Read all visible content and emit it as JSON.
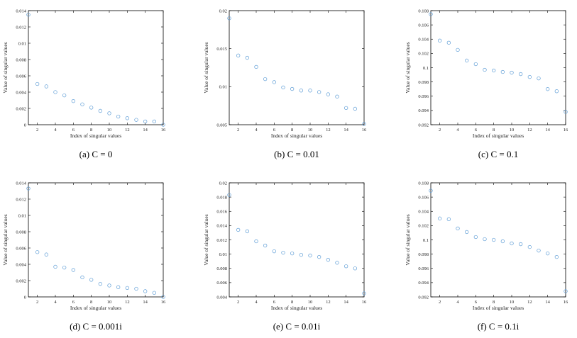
{
  "chart_data": [
    {
      "type": "scatter",
      "caption": "(a) C = 0",
      "xlabel": "Index of singular values",
      "ylabel": "Value of singular values",
      "xlim": [
        1,
        16
      ],
      "ylim": [
        0,
        0.014
      ],
      "xticks": [
        "2",
        "4",
        "6",
        "8",
        "10",
        "12",
        "14",
        "16"
      ],
      "yticks": [
        "0",
        "0.002",
        "0.004",
        "0.006",
        "0.008",
        "0.01",
        "0.012",
        "0.014"
      ],
      "x": [
        1,
        2,
        3,
        4,
        5,
        6,
        7,
        8,
        9,
        10,
        11,
        12,
        13,
        14,
        15,
        16
      ],
      "y": [
        0.0135,
        0.005,
        0.0047,
        0.004,
        0.0036,
        0.0029,
        0.0025,
        0.0021,
        0.0017,
        0.0014,
        0.001,
        0.0008,
        0.0006,
        0.0004,
        0.0004,
        0.0
      ]
    },
    {
      "type": "scatter",
      "caption": "(b) C = 0.01",
      "xlabel": "Index of singular values",
      "ylabel": "Value of singular values",
      "xlim": [
        1,
        16
      ],
      "ylim": [
        0.005,
        0.02
      ],
      "xticks": [
        "2",
        "4",
        "6",
        "8",
        "10",
        "12",
        "14",
        "16"
      ],
      "yticks": [
        "0.005",
        "0.01",
        "0.015",
        "0.02"
      ],
      "x": [
        1,
        2,
        3,
        4,
        5,
        6,
        7,
        8,
        9,
        10,
        11,
        12,
        13,
        14,
        15,
        16
      ],
      "y": [
        0.019,
        0.0141,
        0.0138,
        0.0126,
        0.011,
        0.0106,
        0.0099,
        0.0097,
        0.0095,
        0.0095,
        0.0093,
        0.009,
        0.0087,
        0.0072,
        0.0071,
        0.0051
      ]
    },
    {
      "type": "scatter",
      "caption": "(c) C = 0.1",
      "xlabel": "Index of singular values",
      "ylabel": "Value of singular values",
      "xlim": [
        1,
        16
      ],
      "ylim": [
        0.092,
        0.108
      ],
      "xticks": [
        "2",
        "4",
        "6",
        "8",
        "10",
        "12",
        "14",
        "16"
      ],
      "yticks": [
        "0.092",
        "0.094",
        "0.096",
        "0.098",
        "0.1",
        "0.102",
        "0.104",
        "0.106",
        "0.108"
      ],
      "x": [
        1,
        2,
        3,
        4,
        5,
        6,
        7,
        8,
        9,
        10,
        11,
        12,
        13,
        14,
        15,
        16
      ],
      "y": [
        0.1075,
        0.1038,
        0.1035,
        0.1025,
        0.101,
        0.1005,
        0.0997,
        0.0996,
        0.0994,
        0.0993,
        0.0991,
        0.0987,
        0.0985,
        0.097,
        0.0967,
        0.0938
      ]
    },
    {
      "type": "scatter",
      "caption": "(d) C = 0.001i",
      "xlabel": "Index of singular values",
      "ylabel": "Value of singular values",
      "xlim": [
        1,
        16
      ],
      "ylim": [
        0,
        0.014
      ],
      "xticks": [
        "2",
        "4",
        "6",
        "8",
        "10",
        "12",
        "14",
        "16"
      ],
      "yticks": [
        "0",
        "0.002",
        "0.004",
        "0.006",
        "0.008",
        "0.01",
        "0.012",
        "0.014"
      ],
      "x": [
        1,
        2,
        3,
        4,
        5,
        6,
        7,
        8,
        9,
        10,
        11,
        12,
        13,
        14,
        15,
        16
      ],
      "y": [
        0.0133,
        0.0055,
        0.0052,
        0.0037,
        0.0036,
        0.0033,
        0.0024,
        0.0021,
        0.0016,
        0.0014,
        0.0012,
        0.0011,
        0.001,
        0.0007,
        0.0005,
        0.0
      ]
    },
    {
      "type": "scatter",
      "caption": "(e) C = 0.01i",
      "xlabel": "Index of singular values",
      "ylabel": "Value of singular values",
      "xlim": [
        1,
        16
      ],
      "ylim": [
        0.004,
        0.02
      ],
      "xticks": [
        "2",
        "4",
        "6",
        "8",
        "10",
        "12",
        "14",
        "16"
      ],
      "yticks": [
        "0.004",
        "0.006",
        "0.008",
        "0.01",
        "0.012",
        "0.014",
        "0.016",
        "0.018",
        "0.02"
      ],
      "x": [
        1,
        2,
        3,
        4,
        5,
        6,
        7,
        8,
        9,
        10,
        11,
        12,
        13,
        14,
        15,
        16
      ],
      "y": [
        0.0183,
        0.0134,
        0.0132,
        0.0118,
        0.0112,
        0.0104,
        0.0102,
        0.0101,
        0.0099,
        0.0098,
        0.0096,
        0.0092,
        0.0088,
        0.0083,
        0.008,
        0.0045
      ]
    },
    {
      "type": "scatter",
      "caption": "(f) C = 0.1i",
      "xlabel": "Index of singular values",
      "ylabel": "Value of singular values",
      "xlim": [
        1,
        16
      ],
      "ylim": [
        0.092,
        0.108
      ],
      "xticks": [
        "2",
        "4",
        "6",
        "8",
        "10",
        "12",
        "14",
        "16"
      ],
      "yticks": [
        "0.092",
        "0.094",
        "0.096",
        "0.098",
        "0.1",
        "0.102",
        "0.104",
        "0.106",
        "0.108"
      ],
      "x": [
        1,
        2,
        3,
        4,
        5,
        6,
        7,
        8,
        9,
        10,
        11,
        12,
        13,
        14,
        15,
        16
      ],
      "y": [
        0.1069,
        0.103,
        0.1029,
        0.1016,
        0.1011,
        0.1004,
        0.1001,
        0.1,
        0.0998,
        0.0995,
        0.0994,
        0.099,
        0.0985,
        0.0981,
        0.0976,
        0.0928
      ]
    }
  ],
  "style": {
    "marker_color": "#5b9bd5",
    "axis_color": "#000000",
    "marker": "open-circle"
  }
}
